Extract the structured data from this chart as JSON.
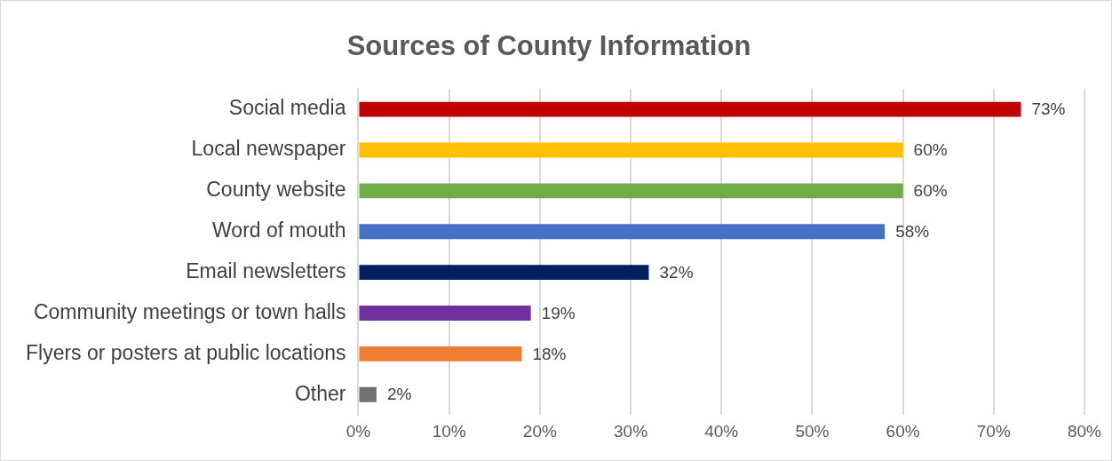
{
  "chart_data": {
    "type": "bar",
    "orientation": "horizontal",
    "title": "Sources of County Information",
    "categories": [
      "Social media",
      "Local newspaper",
      "County website",
      "Word of mouth",
      "Email newsletters",
      "Community meetings or town halls",
      "Flyers or posters at public locations",
      "Other"
    ],
    "values": [
      73,
      60,
      60,
      58,
      32,
      19,
      18,
      2
    ],
    "colors": [
      "#c00000",
      "#ffc000",
      "#70ad47",
      "#4472c4",
      "#002060",
      "#7030a0",
      "#ed7d31",
      "#767171"
    ],
    "value_labels": [
      "73%",
      "60%",
      "60%",
      "58%",
      "32%",
      "19%",
      "18%",
      "2%"
    ],
    "xlim": [
      0,
      80
    ],
    "xticks": [
      {
        "value": 0,
        "label": "0%"
      },
      {
        "value": 10,
        "label": "10%"
      },
      {
        "value": 20,
        "label": "20%"
      },
      {
        "value": 30,
        "label": "30%"
      },
      {
        "value": 40,
        "label": "40%"
      },
      {
        "value": 50,
        "label": "50%"
      },
      {
        "value": 60,
        "label": "60%"
      },
      {
        "value": 70,
        "label": "70%"
      },
      {
        "value": 80,
        "label": "80%"
      }
    ],
    "grid": "x",
    "legend": false
  }
}
